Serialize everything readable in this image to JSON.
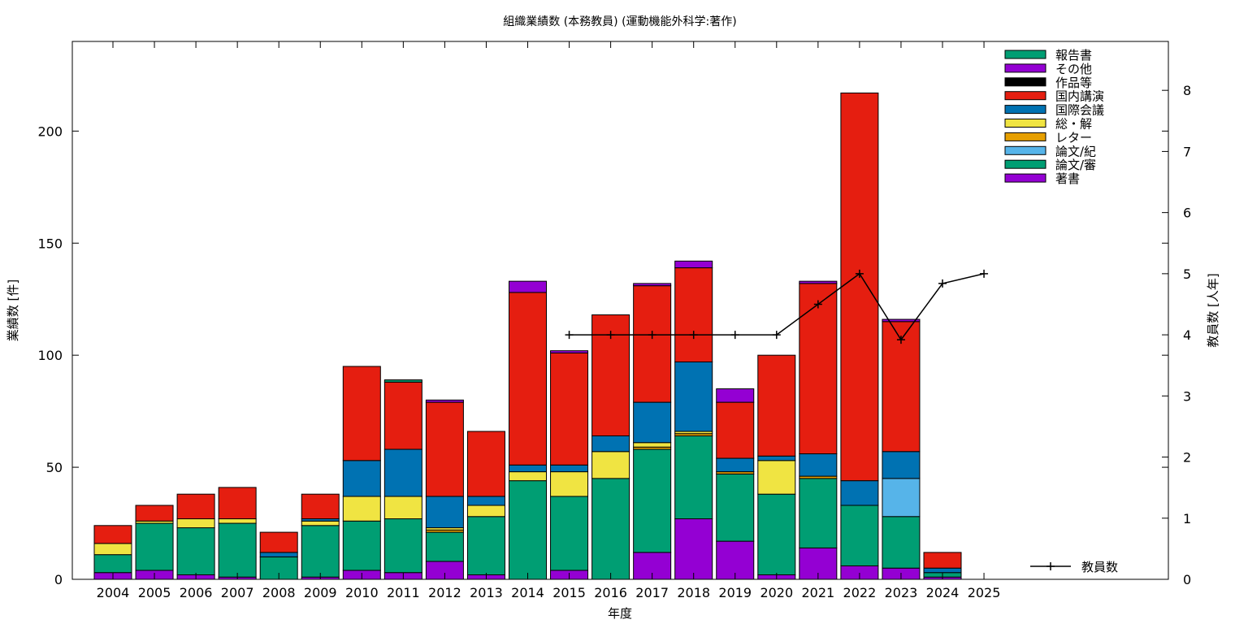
{
  "chart_data": {
    "type": "bar",
    "stacked": true,
    "title": "組織業績数 (本務教員) (運動機能外科学:著作)",
    "xlabel": "年度",
    "ylabel": "業績数 [件]",
    "y2label": "教員数 [人年]",
    "ylim": [
      0,
      240
    ],
    "y2lim": [
      0,
      8.8
    ],
    "yticks": [
      0,
      50,
      100,
      150,
      200
    ],
    "y2ticks": [
      0,
      1,
      2,
      3,
      4,
      5,
      6,
      7,
      8
    ],
    "categories": [
      "2004",
      "2005",
      "2006",
      "2007",
      "2008",
      "2009",
      "2010",
      "2011",
      "2012",
      "2013",
      "2014",
      "2015",
      "2016",
      "2017",
      "2018",
      "2019",
      "2020",
      "2021",
      "2022",
      "2023",
      "2024",
      "2025"
    ],
    "series": [
      {
        "name": "著書",
        "color": "#9400d3",
        "values": [
          3,
          4,
          2,
          1,
          0,
          1,
          4,
          3,
          8,
          2,
          0,
          4,
          0,
          12,
          27,
          17,
          2,
          14,
          6,
          5,
          1,
          0
        ]
      },
      {
        "name": "論文/審",
        "color": "#009e73",
        "values": [
          8,
          21,
          21,
          24,
          10,
          23,
          22,
          24,
          13,
          26,
          44,
          33,
          45,
          46,
          37,
          30,
          36,
          31,
          27,
          23,
          2,
          0
        ]
      },
      {
        "name": "論文/紀",
        "color": "#56b4e9",
        "values": [
          0,
          0,
          0,
          0,
          0,
          0,
          0,
          0,
          0,
          0,
          0,
          0,
          0,
          0,
          0,
          0,
          0,
          0,
          0,
          17,
          0,
          0
        ]
      },
      {
        "name": "レター",
        "color": "#e69f00",
        "values": [
          0,
          0,
          0,
          0,
          0,
          0,
          0,
          0,
          1,
          0,
          0,
          0,
          0,
          1,
          1,
          1,
          0,
          1,
          0,
          0,
          0,
          0
        ]
      },
      {
        "name": "総・解",
        "color": "#f0e442",
        "values": [
          5,
          1,
          4,
          2,
          0,
          2,
          11,
          10,
          1,
          5,
          4,
          11,
          12,
          2,
          1,
          0,
          15,
          0,
          0,
          0,
          0,
          0
        ]
      },
      {
        "name": "国際会議",
        "color": "#0072b2",
        "values": [
          0,
          0,
          0,
          0,
          2,
          1,
          16,
          21,
          14,
          4,
          3,
          3,
          7,
          18,
          31,
          6,
          2,
          10,
          11,
          12,
          2,
          0
        ]
      },
      {
        "name": "国内講演",
        "color": "#e51e10",
        "values": [
          8,
          7,
          11,
          14,
          9,
          11,
          42,
          30,
          42,
          29,
          77,
          50,
          54,
          52,
          42,
          25,
          45,
          76,
          173,
          58,
          7,
          0
        ]
      },
      {
        "name": "作品等",
        "color": "#000000",
        "values": [
          0,
          0,
          0,
          0,
          0,
          0,
          0,
          0,
          0,
          0,
          0,
          0,
          0,
          0,
          0,
          0,
          0,
          0,
          0,
          0,
          0,
          0
        ]
      },
      {
        "name": "その他",
        "color": "#9400d3",
        "values": [
          0,
          0,
          0,
          0,
          0,
          0,
          0,
          0,
          1,
          0,
          5,
          1,
          0,
          1,
          3,
          6,
          0,
          1,
          0,
          1,
          0,
          0
        ]
      },
      {
        "name": "報告書",
        "color": "#009e73",
        "values": [
          0,
          0,
          0,
          0,
          0,
          0,
          0,
          1,
          0,
          0,
          0,
          0,
          0,
          0,
          0,
          0,
          0,
          0,
          0,
          0,
          0,
          0
        ]
      }
    ],
    "line": {
      "name": "教員数",
      "axis": "y2",
      "color": "#000000",
      "x": [
        "2015",
        "2016",
        "2017",
        "2018",
        "2019",
        "2020",
        "2021",
        "2022",
        "2023",
        "2024",
        "2025"
      ],
      "values": [
        4,
        4,
        4,
        4,
        4,
        4,
        4.5,
        5,
        3.92,
        4.84,
        5
      ]
    },
    "legend_position": "top-right",
    "grid": false
  }
}
